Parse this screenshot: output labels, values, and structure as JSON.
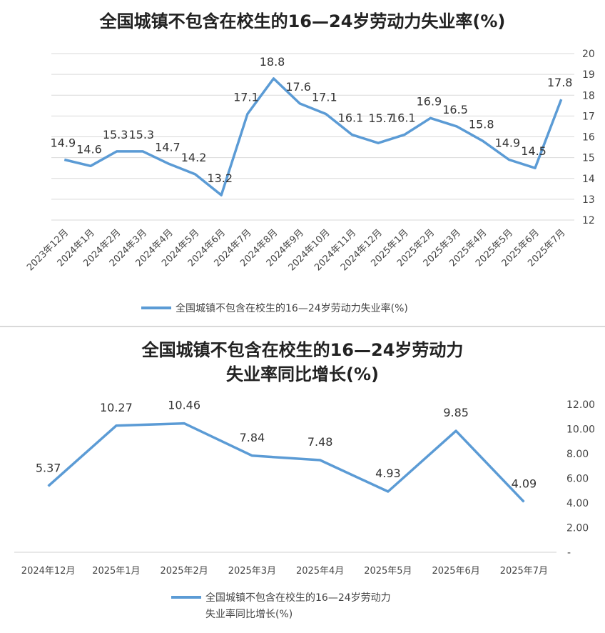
{
  "chart_data": [
    {
      "type": "line",
      "title": "全国城镇不包含在校生的16—24岁劳动力失业率(%)",
      "categories": [
        "2023年12月",
        "2024年1月",
        "2024年2月",
        "2024年3月",
        "2024年4月",
        "2024年5月",
        "2024年6月",
        "2024年7月",
        "2024年8月",
        "2024年9月",
        "2024年10月",
        "2024年11月",
        "2024年12月",
        "2025年1月",
        "2025年2月",
        "2025年3月",
        "2025年4月",
        "2025年5月",
        "2025年6月",
        "2025年7月"
      ],
      "series": [
        {
          "name": "全国城镇不包含在校生的16—24岁劳动力失业率(%)",
          "values": [
            14.9,
            14.6,
            15.3,
            15.3,
            14.7,
            14.2,
            13.2,
            17.1,
            18.8,
            17.6,
            17.1,
            16.1,
            15.7,
            16.1,
            16.9,
            16.5,
            15.8,
            14.9,
            14.5,
            17.8
          ],
          "labels": [
            "14.9",
            "14.6",
            "15.3",
            "15.3",
            "14.7",
            "14.2",
            "13.2",
            "17.1",
            "18.8",
            "17.6",
            "17.1",
            "16.1",
            "",
            "16.1",
            "16.9",
            "16.5",
            "15.8",
            "14.9",
            "14.5",
            "17.8"
          ]
        }
      ],
      "ylim": [
        12,
        20
      ],
      "yticks": [
        "12",
        "13",
        "14",
        "15",
        "16",
        "17",
        "18",
        "19",
        "20"
      ],
      "grid": true,
      "legend": "bottom",
      "color": "#5B9BD5",
      "extra_labels": [
        "15.7"
      ]
    },
    {
      "type": "line",
      "title": "全国城镇不包含在校生的16—24岁劳动力",
      "subtitle": "失业率同比增长(%)",
      "categories": [
        "2024年12月",
        "2025年1月",
        "2025年2月",
        "2025年3月",
        "2025年4月",
        "2025年5月",
        "2025年6月",
        "2025年7月"
      ],
      "series": [
        {
          "name": "全国城镇不包含在校生的16—24岁劳动力失业率同比增长(%)",
          "name_lines": [
            "全国城镇不包含在校生的16—24岁劳动力",
            "失业率同比增长(%)"
          ],
          "values": [
            5.37,
            10.27,
            10.46,
            7.84,
            7.48,
            4.93,
            9.85,
            4.09
          ],
          "labels": [
            "5.37",
            "10.27",
            "10.46",
            "7.84",
            "7.48",
            "4.93",
            "9.85",
            "4.09"
          ]
        }
      ],
      "ylim": [
        0,
        12
      ],
      "yticks": [
        "-",
        "2.00",
        "4.00",
        "6.00",
        "8.00",
        "10.00",
        "12.00"
      ],
      "grid": false,
      "legend": "bottom",
      "color": "#5B9BD5"
    }
  ]
}
